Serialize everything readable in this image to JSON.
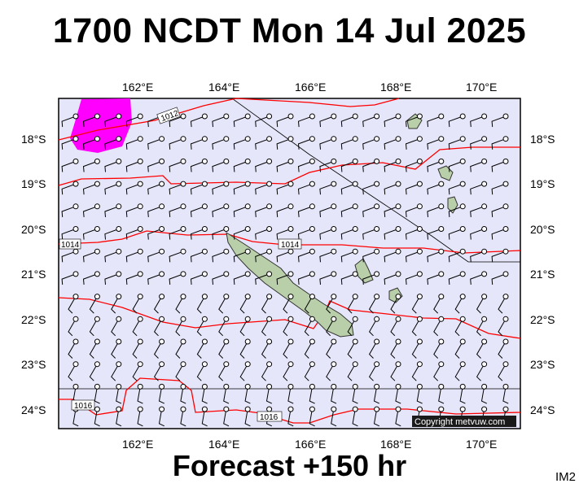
{
  "header": {
    "title": "1700 NCDT Mon 14 Jul 2025"
  },
  "footer": {
    "forecast": "Forecast +150 hr",
    "image_tag": "IM2"
  },
  "map": {
    "lon_labels": [
      "162°E",
      "164°E",
      "166°E",
      "168°E",
      "170°E"
    ],
    "lat_labels": [
      "18°S",
      "19°S",
      "20°S",
      "21°S",
      "22°S",
      "23°S",
      "24°S"
    ],
    "isobar_labels": [
      "1012",
      "1014",
      "1014",
      "1016",
      "1016"
    ],
    "copyright": "Copyright metvuw.com",
    "colors": {
      "ocean": "#e6e6fa",
      "isobar": "#ff0000",
      "rain": "#ff00ff",
      "land": "#b9cfa9"
    }
  }
}
